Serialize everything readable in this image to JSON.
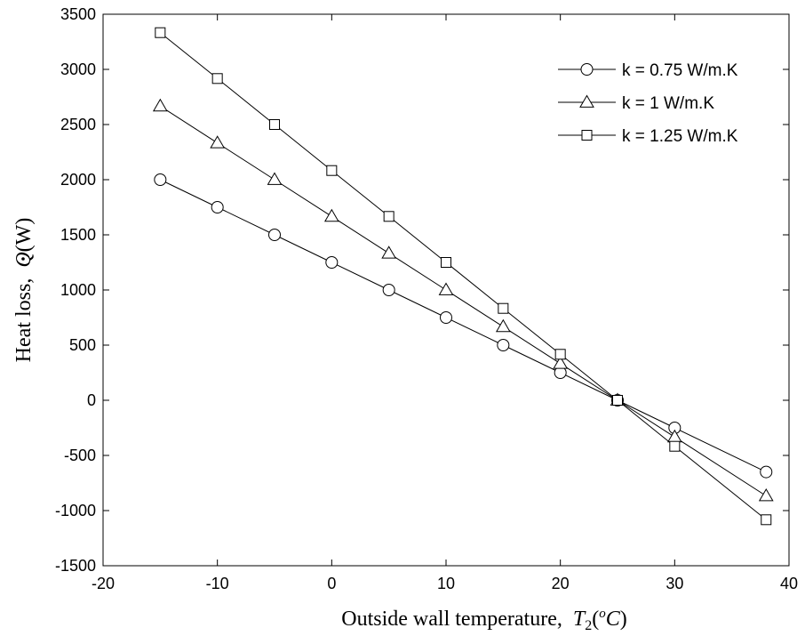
{
  "chart_data": {
    "type": "line",
    "title": "",
    "xlabel": "Outside wall temperature,",
    "xlabel_symbol": "T",
    "xlabel_sub": "2",
    "xlabel_unit_open": "(",
    "xlabel_unit_sup": "o",
    "xlabel_unit_main": "C",
    "xlabel_unit_close": ")",
    "ylabel": "Heat loss,",
    "ylabel_symbol": "Q",
    "ylabel_unit": "(W)",
    "xlim": [
      -20,
      40
    ],
    "ylim": [
      -1500,
      3500
    ],
    "xticks": [
      -20,
      -10,
      0,
      10,
      20,
      30,
      40
    ],
    "yticks": [
      -1500,
      -1000,
      -500,
      0,
      500,
      1000,
      1500,
      2000,
      2500,
      3000,
      3500
    ],
    "grid": false,
    "legend_position": "top-right",
    "series": [
      {
        "name": "k = 0.75 W/m.K",
        "marker": "circle",
        "x": [
          -15,
          -10,
          -5,
          0,
          5,
          10,
          15,
          20,
          25,
          30,
          38
        ],
        "y": [
          2000,
          1750,
          1500,
          1250,
          1000,
          750,
          500,
          250,
          0,
          -250,
          -650
        ]
      },
      {
        "name": "k = 1 W/m.K",
        "marker": "triangle",
        "x": [
          -15,
          -10,
          -5,
          0,
          5,
          10,
          15,
          20,
          25,
          30,
          38
        ],
        "y": [
          2667,
          2333,
          2000,
          1667,
          1333,
          1000,
          667,
          333,
          0,
          -333,
          -867
        ]
      },
      {
        "name": "k = 1.25 W/m.K",
        "marker": "square",
        "x": [
          -15,
          -10,
          -5,
          0,
          5,
          10,
          15,
          20,
          25,
          30,
          38
        ],
        "y": [
          3333,
          2917,
          2500,
          2083,
          1667,
          1250,
          833,
          417,
          0,
          -417,
          -1083
        ]
      }
    ]
  }
}
